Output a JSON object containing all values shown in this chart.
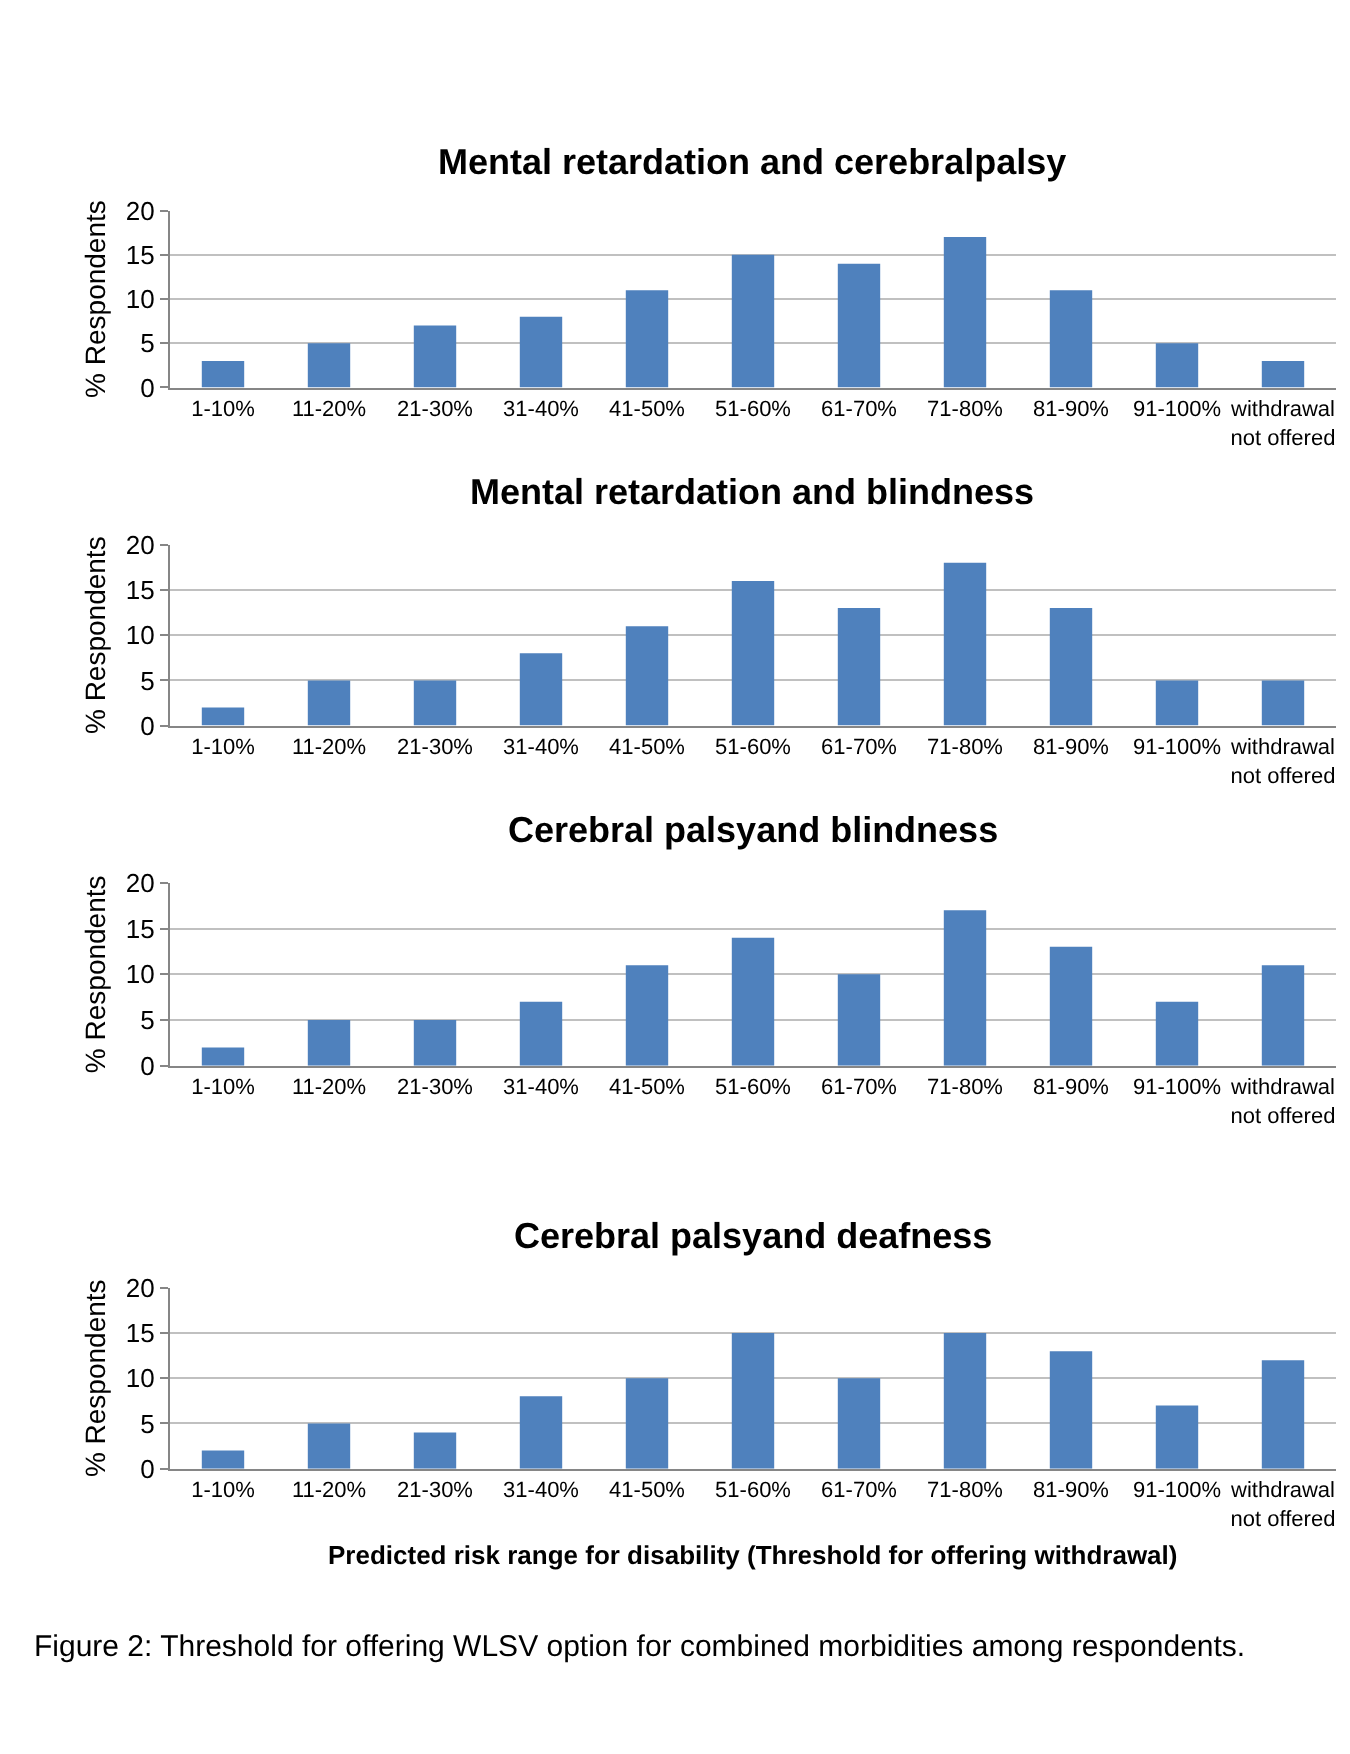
{
  "chart_data": [
    {
      "type": "bar",
      "title": "Mental retardation and cerebralpalsy",
      "ylabel": "% Respondents",
      "categories": [
        "1-10%",
        "11-20%",
        "21-30%",
        "31-40%",
        "41-50%",
        "51-60%",
        "61-70%",
        "71-80%",
        "81-90%",
        "91-100%",
        "withdrawal not offered"
      ],
      "values": [
        3,
        5,
        7,
        8,
        11,
        15,
        14,
        17,
        11,
        5,
        3
      ],
      "color": "#4f81bd",
      "ylim": [
        0,
        20
      ],
      "yticks": [
        0,
        5,
        10,
        15,
        20
      ],
      "grid": "y"
    },
    {
      "type": "bar",
      "title": "Mental retardation and blindness",
      "ylabel": "% Respondents",
      "categories": [
        "1-10%",
        "11-20%",
        "21-30%",
        "31-40%",
        "41-50%",
        "51-60%",
        "61-70%",
        "71-80%",
        "81-90%",
        "91-100%",
        "withdrawal not offered"
      ],
      "values": [
        2,
        5,
        5,
        8,
        11,
        16,
        13,
        18,
        13,
        5,
        5
      ],
      "color": "#4f81bd",
      "ylim": [
        0,
        20
      ],
      "yticks": [
        0,
        5,
        10,
        15,
        20
      ],
      "grid": "y"
    },
    {
      "type": "bar",
      "title": "Cerebral palsyand blindness",
      "ylabel": "% Respondents",
      "categories": [
        "1-10%",
        "11-20%",
        "21-30%",
        "31-40%",
        "41-50%",
        "51-60%",
        "61-70%",
        "71-80%",
        "81-90%",
        "91-100%",
        "withdrawal not offered"
      ],
      "values": [
        2,
        5,
        5,
        7,
        11,
        14,
        10,
        17,
        13,
        7,
        11
      ],
      "color": "#4f81bd",
      "ylim": [
        0,
        20
      ],
      "yticks": [
        0,
        5,
        10,
        15,
        20
      ],
      "grid": "y"
    },
    {
      "type": "bar",
      "title": "Cerebral palsyand deafness",
      "ylabel": "% Respondents",
      "xlabel": "Predicted risk range for disability (Threshold for offering withdrawal)",
      "categories": [
        "1-10%",
        "11-20%",
        "21-30%",
        "31-40%",
        "41-50%",
        "51-60%",
        "61-70%",
        "71-80%",
        "81-90%",
        "91-100%",
        "withdrawal not offered"
      ],
      "values": [
        2,
        5,
        4,
        8,
        10,
        15,
        10,
        15,
        13,
        7,
        12
      ],
      "color": "#4f81bd",
      "ylim": [
        0,
        20
      ],
      "yticks": [
        0,
        5,
        10,
        15,
        20
      ],
      "grid": "y",
      "annotations": [
        "Figure 2: Threshold for offering WLSV option for combined morbidities among respondents."
      ]
    }
  ]
}
